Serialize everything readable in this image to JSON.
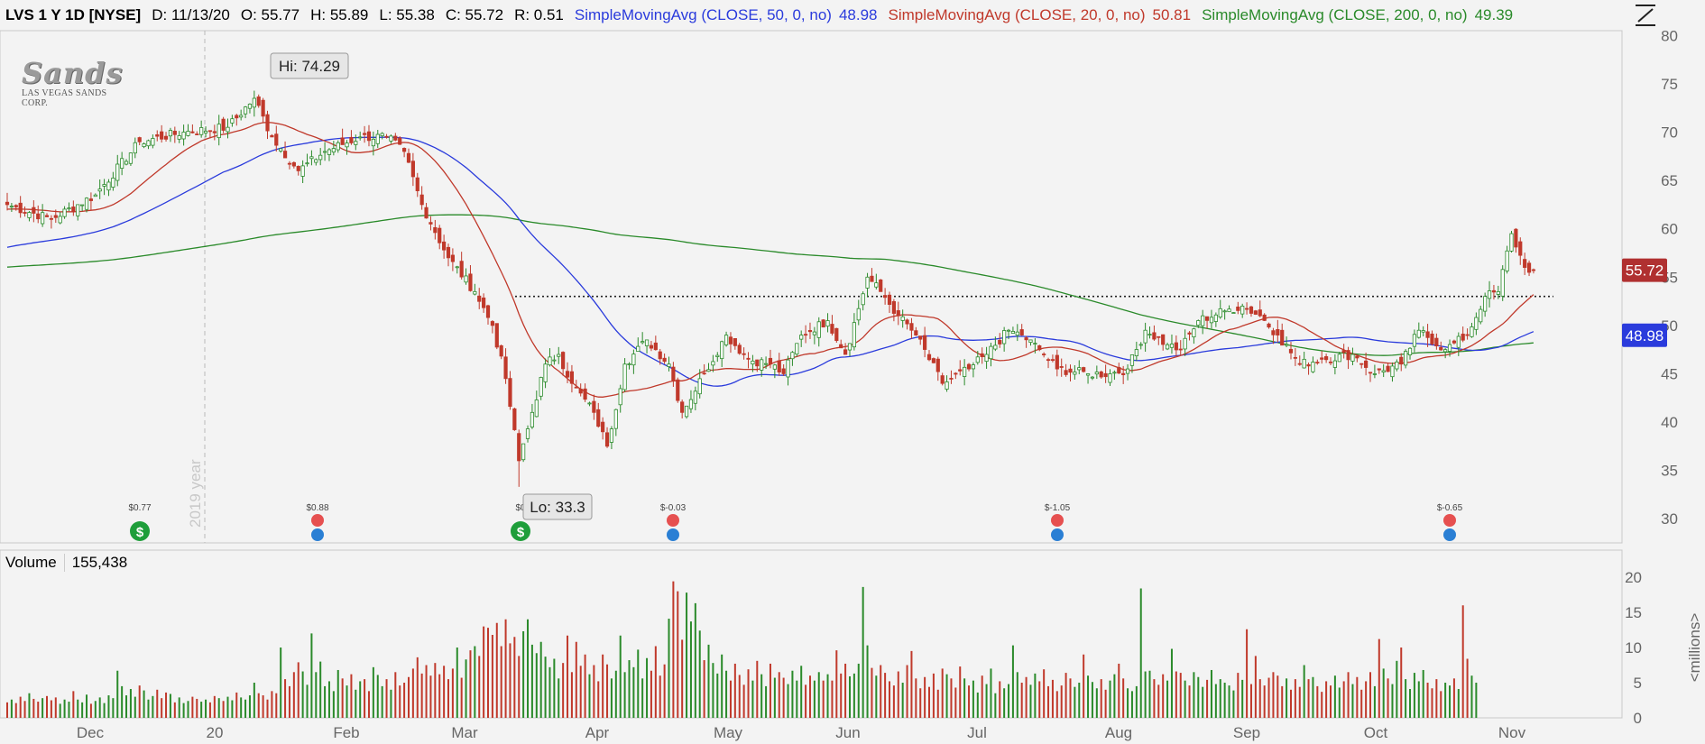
{
  "header": {
    "symbol": "LVS 1 Y 1D [NYSE]",
    "date": "D: 11/13/20",
    "open": "O: 55.77",
    "high": "H: 55.89",
    "low": "L: 55.38",
    "close": "C: 55.72",
    "range": "R: 0.51",
    "sma50_label": "SimpleMovingAvg (CLOSE, 50, 0, no)",
    "sma50_value": "48.98",
    "sma20_label": "SimpleMovingAvg (CLOSE, 20, 0, no)",
    "sma20_value": "50.81",
    "sma200_label": "SimpleMovingAvg (CLOSE, 200, 0, no)",
    "sma200_value": "49.39"
  },
  "logo": {
    "main": "Sands",
    "sub": "LAS VEGAS SANDS CORP."
  },
  "icons": {
    "draw_tool": "drawing-tool-icon",
    "dividend": "dividend-icon",
    "earnings": "earnings-icon"
  },
  "volume_panel": {
    "label": "Volume",
    "value": "155,438",
    "unit": "<millions>"
  },
  "colors": {
    "up": "#2a8a2a",
    "down": "#c0392b",
    "sma50": "#2a3bdc",
    "sma20": "#c0392b",
    "sma200": "#2a8a2a",
    "close_badge": "#b03030",
    "sma50_badge": "#2a3bdc",
    "background": "#f3f3f3"
  },
  "chart_data": {
    "type": "candlestick",
    "x_labels": [
      "Dec",
      "20",
      "Feb",
      "Mar",
      "Apr",
      "May",
      "Jun",
      "Jul",
      "Aug",
      "Sep",
      "Oct",
      "Nov"
    ],
    "year_marker": "2019 year",
    "y_ticks": [
      30,
      35,
      40,
      45,
      50,
      55,
      60,
      65,
      70,
      75,
      80
    ],
    "ylim": [
      27.5,
      80.5
    ],
    "volume_ticks": [
      0,
      5,
      10,
      15,
      20
    ],
    "volume_ylim": [
      0,
      20
    ],
    "hi_label": "Hi: 74.29",
    "lo_label": "Lo: 33.3",
    "last_close": "55.72",
    "sma50_last": "48.98",
    "resistance_level": 53,
    "events": [
      {
        "x": "Dec 2",
        "label": "$0.77",
        "type": "dividend"
      },
      {
        "x": "Jan 22",
        "label": "$0.88",
        "type": "earnings"
      },
      {
        "x": "Mar 16",
        "label": "$0",
        "type": "dividend"
      },
      {
        "x": "Apr 21",
        "label": "$-0.03",
        "type": "earnings"
      },
      {
        "x": "Jul 21",
        "label": "$-1.05",
        "type": "earnings"
      },
      {
        "x": "Oct 21",
        "label": "$-0.65",
        "type": "earnings"
      }
    ],
    "close_anchors": [
      [
        0,
        62.5
      ],
      [
        10,
        61.0
      ],
      [
        20,
        63.5
      ],
      [
        30,
        69.0
      ],
      [
        40,
        70.0
      ],
      [
        50,
        70.5
      ],
      [
        56,
        73.5
      ],
      [
        60,
        69.5
      ],
      [
        66,
        66.0
      ],
      [
        72,
        68.0
      ],
      [
        80,
        69.5
      ],
      [
        86,
        69.5
      ],
      [
        90,
        68.0
      ],
      [
        94,
        62.5
      ],
      [
        100,
        57.0
      ],
      [
        106,
        53.5
      ],
      [
        110,
        50.0
      ],
      [
        113,
        44.5
      ],
      [
        116,
        36.0
      ],
      [
        119,
        41.0
      ],
      [
        122,
        46.0
      ],
      [
        125,
        47.0
      ],
      [
        128,
        44.0
      ],
      [
        133,
        41.0
      ],
      [
        136,
        37.5
      ],
      [
        140,
        46.0
      ],
      [
        145,
        48.5
      ],
      [
        150,
        46.0
      ],
      [
        153,
        41.0
      ],
      [
        158,
        45.0
      ],
      [
        163,
        49.0
      ],
      [
        168,
        46.5
      ],
      [
        173,
        46.0
      ],
      [
        176,
        45.0
      ],
      [
        180,
        49.0
      ],
      [
        186,
        50.5
      ],
      [
        190,
        47.0
      ],
      [
        195,
        55.0
      ],
      [
        198,
        53.5
      ],
      [
        202,
        51.0
      ],
      [
        206,
        49.0
      ],
      [
        212,
        44.0
      ],
      [
        218,
        45.5
      ],
      [
        222,
        47.0
      ],
      [
        227,
        49.5
      ],
      [
        230,
        49.0
      ],
      [
        234,
        47.5
      ],
      [
        238,
        45.5
      ],
      [
        245,
        45.0
      ],
      [
        250,
        45.0
      ],
      [
        254,
        45.5
      ],
      [
        258,
        49.5
      ],
      [
        263,
        48.0
      ],
      [
        266,
        47.5
      ],
      [
        270,
        50.5
      ],
      [
        276,
        51.5
      ],
      [
        280,
        52.0
      ],
      [
        284,
        51.0
      ],
      [
        288,
        49.0
      ],
      [
        293,
        46.0
      ],
      [
        298,
        46.5
      ],
      [
        305,
        47.0
      ],
      [
        310,
        45.0
      ],
      [
        316,
        46.0
      ],
      [
        320,
        49.5
      ],
      [
        326,
        47.5
      ],
      [
        331,
        49.0
      ],
      [
        335,
        53.0
      ],
      [
        338,
        53.5
      ],
      [
        341,
        59.5
      ],
      [
        344,
        56.0
      ],
      [
        346,
        55.72
      ]
    ],
    "volume_series": [
      2.2,
      2.6,
      2.1,
      3.0,
      2.4,
      3.5,
      2.7,
      2.3,
      2.8,
      3.1,
      2.5,
      2.9,
      2.0,
      2.6,
      2.3,
      3.8,
      2.6,
      2.2,
      3.3,
      2.0,
      2.4,
      2.9,
      2.1,
      3.2,
      2.8,
      6.7,
      4.5,
      3.2,
      4.1,
      3.0,
      4.6,
      3.9,
      2.6,
      3.1,
      4.0,
      2.8,
      3.6,
      3.4,
      2.2,
      2.9,
      2.1,
      2.4,
      3.0,
      2.7,
      2.3,
      2.6,
      2.2,
      3.1,
      2.8,
      2.4,
      3.0,
      2.5,
      3.6,
      2.9,
      2.6,
      3.2,
      5.0,
      3.5,
      3.2,
      2.6,
      3.8,
      3.5,
      10.0,
      5.5,
      4.5,
      6.5,
      7.9,
      6.6,
      4.7,
      12.0,
      6.5,
      8.0,
      4.5,
      5.2,
      3.8,
      6.8,
      5.6,
      4.6,
      6.2,
      4.0,
      5.2,
      5.5,
      3.8,
      7.2,
      6.1,
      4.5,
      5.5,
      4.0,
      6.5,
      4.6,
      5.0,
      5.8,
      7.0,
      8.6,
      6.3,
      7.5,
      6.0,
      7.8,
      6.2,
      7.4,
      5.5,
      7.0,
      10.0,
      5.7,
      8.3,
      9.6,
      10.2,
      8.8,
      13.0,
      12.8,
      11.8,
      13.5,
      10.2,
      14.0,
      10.6,
      11.5,
      8.8,
      12.3,
      14.0,
      10.4,
      9.2,
      10.8,
      8.7,
      7.2,
      8.4,
      5.6,
      7.8,
      11.7,
      6.5,
      10.8,
      7.4,
      9.0,
      6.2,
      7.5,
      5.2,
      9.0,
      7.6,
      5.6,
      6.7,
      11.7,
      6.5,
      8.2,
      7.2,
      9.7,
      5.6,
      8.5,
      6.7,
      10.2,
      6.0,
      7.6,
      14.1,
      19.4,
      18.0,
      11.1,
      17.8,
      13.7,
      16.3,
      12.4,
      8.2,
      10.4,
      7.8,
      6.3,
      9.0,
      6.7,
      5.3,
      7.7,
      6.1,
      4.7,
      6.9,
      5.3,
      8.1,
      6.2,
      4.5,
      7.7,
      5.7,
      6.5,
      5.7,
      4.8,
      6.7,
      5.3,
      7.4,
      4.7,
      6.0,
      5.3,
      6.5,
      5.3,
      6.2,
      5.3,
      9.6,
      6.3,
      7.7,
      5.9,
      6.3,
      7.7,
      18.6,
      10.3,
      7.1,
      6.0,
      7.5,
      6.4,
      5.2,
      4.6,
      6.6,
      5.0,
      7.5,
      9.5,
      5.6,
      4.2,
      5.8,
      4.4,
      6.3,
      4.0,
      7.0,
      6.2,
      5.6,
      4.3,
      7.3,
      5.6,
      4.6,
      5.3,
      3.6,
      6.0,
      4.8,
      7.0,
      3.5,
      5.2,
      4.2,
      4.8,
      10.3,
      6.5,
      5.0,
      5.8,
      4.7,
      6.3,
      5.2,
      6.9,
      4.5,
      5.4,
      3.8,
      4.6,
      6.4,
      5.6,
      4.4,
      5.0,
      9.0,
      6.0,
      5.1,
      4.2,
      5.5,
      4.0,
      5.3,
      6.2,
      7.7,
      5.6,
      4.2,
      3.8,
      4.5,
      18.4,
      6.6,
      6.7,
      5.5,
      4.7,
      6.2,
      5.3,
      9.8,
      6.6,
      6.4,
      5.3,
      4.6,
      6.5,
      5.8,
      4.4,
      5.4,
      6.8,
      4.8,
      5.5,
      5.0,
      4.6,
      3.9,
      6.4,
      5.4,
      12.6,
      4.8,
      8.8,
      5.5,
      4.6,
      5.7,
      6.5,
      6.0,
      4.5,
      5.6,
      4.0,
      5.5,
      4.4,
      7.5,
      5.5,
      5.8,
      4.5,
      3.7,
      5.2,
      4.6,
      6.0,
      4.3,
      5.2,
      6.5,
      4.8,
      5.8,
      4.0,
      5.2,
      6.5,
      4.5,
      11.2,
      7.0,
      5.6,
      4.8,
      8.1,
      10.0,
      5.5,
      4.1,
      6.4,
      5.2,
      6.8,
      5.0,
      4.2,
      5.5,
      3.8,
      5.0,
      4.6,
      5.6,
      4.1,
      16.0,
      8.4,
      6.0,
      5.0
    ]
  }
}
